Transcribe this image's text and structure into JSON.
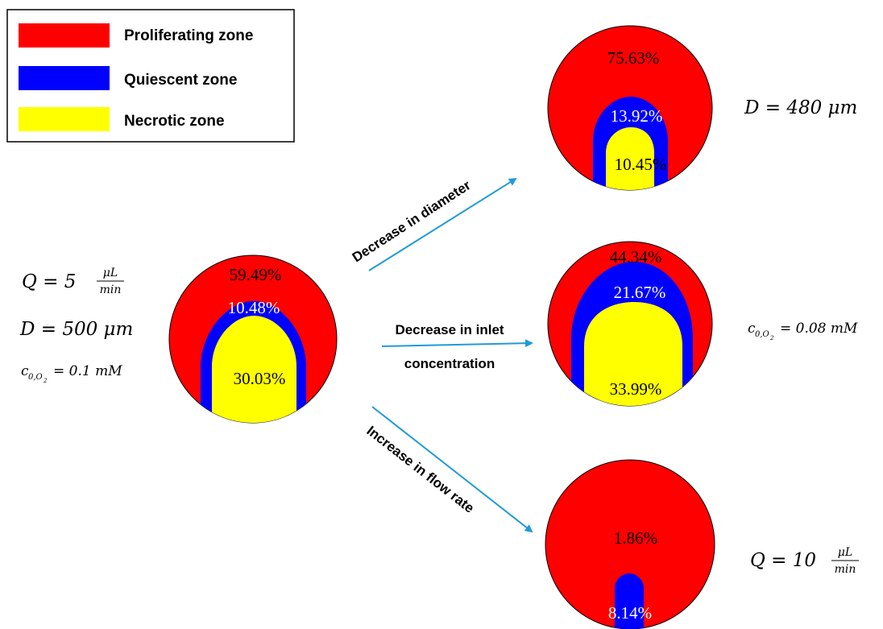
{
  "colors": {
    "proliferating": "#ff0000",
    "quiescent": "#0000ff",
    "necrotic": "#ffff00",
    "arrow": "#1f9bd7"
  },
  "legend": {
    "items": [
      {
        "label": "Proliferating zone",
        "color": "#ff0000"
      },
      {
        "label": "Quiescent zone",
        "color": "#0000ff"
      },
      {
        "label": "Necrotic zone",
        "color": "#ffff00"
      }
    ]
  },
  "base": {
    "q_prefix": "Q = 5",
    "q_num": "μL",
    "q_den": "min",
    "d_text": "D = 500 μm",
    "c_sym": "c",
    "c_sub": "0,O",
    "c_sub2": "2",
    "c_val": "= 0.1 mM",
    "proliferating": "59.49%",
    "quiescent": "10.48%",
    "necrotic": "30.03%"
  },
  "arrows": {
    "diameter": "Decrease in diameter",
    "inlet_line1": "Decrease in inlet",
    "inlet_line2": "concentration",
    "flow": "Increase in flow rate"
  },
  "result_diameter": {
    "label": "D = 480 μm",
    "proliferating": "75.63%",
    "quiescent": "13.92%",
    "necrotic": "10.45%"
  },
  "result_inlet": {
    "c_sym": "c",
    "c_sub": "0,O",
    "c_sub2": "2",
    "c_val": "= 0.08 mM",
    "proliferating": "44.34%",
    "quiescent": "21.67%",
    "necrotic": "33.99%"
  },
  "result_flow": {
    "q_prefix": "Q = 10",
    "q_num": "μL",
    "q_den": "min",
    "proliferating": "1.86%",
    "quiescent": "8.14%"
  }
}
